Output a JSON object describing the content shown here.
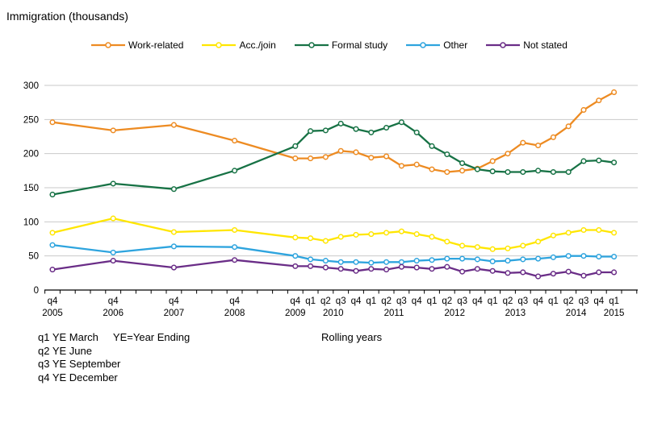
{
  "chart_data": {
    "type": "line",
    "title": "Immigration (thousands)",
    "xlabel": "Rolling years",
    "ylabel": "Immigration (thousands)",
    "ylim": [
      0,
      300
    ],
    "ytick_step": 50,
    "grid": "horizontal-gridlines",
    "legend_position": "top",
    "categories": [
      "q4 2005",
      "q4 2006",
      "q4 2007",
      "q4 2008",
      "q4 2009",
      "q1 2010",
      "q2 2010",
      "q3 2010",
      "q4 2010",
      "q1 2011",
      "q2 2011",
      "q3 2011",
      "q4 2011",
      "q1 2012",
      "q2 2012",
      "q3 2012",
      "q4 2012",
      "q1 2013",
      "q2 2013",
      "q3 2013",
      "q4 2013",
      "q1 2014",
      "q2 2014",
      "q3 2014",
      "q4 2014",
      "q1 2015"
    ],
    "x_quarter_offsets": [
      0,
      4,
      8,
      12,
      16,
      17,
      18,
      19,
      20,
      21,
      22,
      23,
      24,
      25,
      26,
      27,
      28,
      29,
      30,
      31,
      32,
      33,
      34,
      35,
      36,
      37
    ],
    "series": [
      {
        "name": "Work-related",
        "color": "#ED8B22",
        "values": [
          246,
          234,
          242,
          219,
          193,
          193,
          195,
          204,
          202,
          194,
          196,
          182,
          184,
          177,
          173,
          175,
          178,
          189,
          200,
          216,
          212,
          224,
          240,
          264,
          278,
          290
        ]
      },
      {
        "name": "Acc./join",
        "color": "#FFE600",
        "values": [
          84,
          105,
          85,
          88,
          77,
          76,
          72,
          78,
          81,
          82,
          84,
          86,
          82,
          78,
          71,
          65,
          63,
          60,
          61,
          65,
          71,
          80,
          84,
          88,
          88,
          84
        ]
      },
      {
        "name": "Formal study",
        "color": "#177245",
        "values": [
          140,
          156,
          148,
          175,
          211,
          233,
          234,
          244,
          236,
          231,
          238,
          246,
          231,
          211,
          199,
          186,
          177,
          174,
          173,
          173,
          175,
          173,
          173,
          189,
          190,
          187
        ]
      },
      {
        "name": "Other",
        "color": "#2EA4DE",
        "values": [
          66,
          55,
          64,
          63,
          50,
          45,
          43,
          41,
          41,
          40,
          41,
          41,
          43,
          44,
          46,
          46,
          45,
          42,
          43,
          45,
          46,
          48,
          50,
          50,
          49,
          49
        ]
      },
      {
        "name": "Not stated",
        "color": "#6A2D87",
        "values": [
          30,
          43,
          33,
          44,
          35,
          35,
          33,
          31,
          28,
          31,
          30,
          34,
          33,
          31,
          34,
          27,
          31,
          28,
          25,
          26,
          20,
          24,
          27,
          21,
          26,
          26
        ]
      }
    ]
  },
  "notes": {
    "q1": "q1 YE March",
    "ye_definition": "YE=Year Ending",
    "q2": "q2 YE June",
    "q3": "q3 YE September",
    "q4": "q4 YE December"
  }
}
